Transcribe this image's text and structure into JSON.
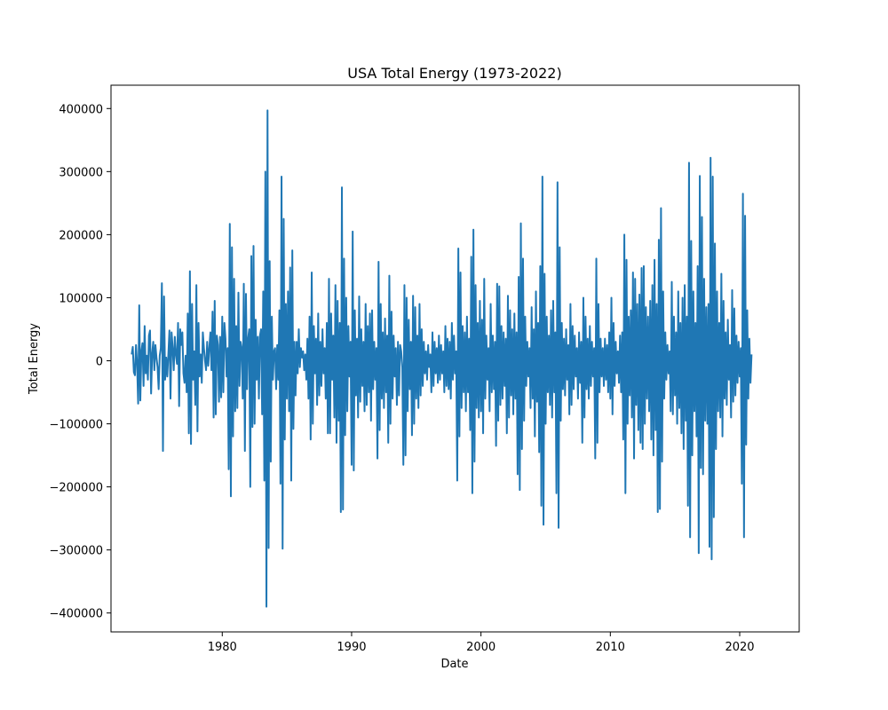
{
  "chart_data": {
    "type": "line",
    "title": "USA Total Energy (1973-2022)",
    "xlabel": "Date",
    "ylabel": "Total Energy",
    "xlim": [
      1971.4,
      2024.6
    ],
    "ylim": [
      -430000,
      437000
    ],
    "x_ticks": [
      1980,
      1990,
      2000,
      2010,
      2020
    ],
    "x_tick_labels": [
      "1980",
      "1990",
      "2000",
      "2010",
      "2020"
    ],
    "y_ticks": [
      -400000,
      -300000,
      -200000,
      -100000,
      0,
      100000,
      200000,
      300000,
      400000
    ],
    "y_tick_labels": [
      "−400000",
      "−300000",
      "−200000",
      "−100000",
      "0",
      "100000",
      "200000",
      "300000",
      "400000"
    ],
    "grid": false,
    "legend": "none",
    "series": [
      {
        "color": "#1f77b4",
        "x_start": 1973.0,
        "x_step_months": 1,
        "values": [
          10000,
          22000,
          -18000,
          -23000,
          25000,
          -5000,
          -68000,
          88000,
          -63000,
          15000,
          28000,
          -40000,
          55000,
          -20000,
          8000,
          -30000,
          40000,
          48000,
          -52000,
          12000,
          30000,
          -15000,
          25000,
          5000,
          -10000,
          -45000,
          8000,
          20000,
          123000,
          -143000,
          102000,
          -30000,
          5000,
          -25000,
          10000,
          48000,
          -60000,
          45000,
          20000,
          -15000,
          38000,
          10000,
          -5000,
          60000,
          -72000,
          50000,
          25000,
          45000,
          -20000,
          -35000,
          8000,
          -50000,
          75000,
          -115000,
          142000,
          -132000,
          90000,
          -30000,
          15000,
          -70000,
          120000,
          -112000,
          60000,
          -25000,
          10000,
          -35000,
          45000,
          20000,
          0,
          -15000,
          30000,
          -8000,
          20000,
          45000,
          -15000,
          78000,
          -90000,
          95000,
          -85000,
          40000,
          25000,
          -65000,
          38000,
          -58000,
          70000,
          -50000,
          60000,
          35000,
          -25000,
          20000,
          -172000,
          217000,
          -215000,
          180000,
          -120000,
          130000,
          -80000,
          55000,
          -75000,
          108000,
          -40000,
          30000,
          20000,
          -60000,
          122000,
          -143000,
          106000,
          -45000,
          35000,
          50000,
          -200000,
          166000,
          -105000,
          182000,
          -100000,
          65000,
          -30000,
          38000,
          -60000,
          40000,
          50000,
          -85000,
          110000,
          -190000,
          300000,
          -390000,
          397000,
          -297000,
          158000,
          -160000,
          70000,
          -30000,
          15000,
          20000,
          -45000,
          25000,
          -30000,
          80000,
          -195000,
          292000,
          -298000,
          225000,
          -125000,
          90000,
          -60000,
          110000,
          -80000,
          148000,
          -190000,
          175000,
          -108000,
          30000,
          -55000,
          30000,
          -20000,
          50000,
          -10000,
          20000,
          5000,
          15000,
          -15000,
          10000,
          -30000,
          35000,
          -60000,
          70000,
          -125000,
          140000,
          -100000,
          55000,
          -20000,
          35000,
          -70000,
          75000,
          -55000,
          30000,
          -40000,
          50000,
          -20000,
          20000,
          -60000,
          60000,
          -115000,
          130000,
          -115000,
          75000,
          -30000,
          40000,
          -90000,
          120000,
          -130000,
          95000,
          -95000,
          60000,
          -240000,
          275000,
          -236000,
          162000,
          -118000,
          100000,
          -80000,
          55000,
          -25000,
          30000,
          -165000,
          205000,
          -174000,
          80000,
          -55000,
          35000,
          -90000,
          102000,
          -65000,
          50000,
          -40000,
          30000,
          -80000,
          90000,
          -70000,
          55000,
          -50000,
          75000,
          -95000,
          80000,
          -45000,
          30000,
          -30000,
          20000,
          -155000,
          157000,
          -110000,
          90000,
          -60000,
          45000,
          -75000,
          67000,
          -50000,
          40000,
          -130000,
          135000,
          -100000,
          78000,
          -60000,
          40000,
          -25000,
          20000,
          -70000,
          30000,
          -55000,
          25000,
          15000,
          -10000,
          -165000,
          120000,
          -150000,
          100000,
          -80000,
          65000,
          -45000,
          30000,
          -118000,
          103000,
          -100000,
          85000,
          -60000,
          40000,
          -75000,
          90000,
          -55000,
          50000,
          -40000,
          30000,
          -20000,
          15000,
          -30000,
          25000,
          -10000,
          10000,
          -50000,
          45000,
          -40000,
          30000,
          -20000,
          20000,
          -35000,
          40000,
          -30000,
          25000,
          -20000,
          15000,
          -50000,
          55000,
          -40000,
          35000,
          -45000,
          30000,
          -60000,
          60000,
          -30000,
          40000,
          -20000,
          15000,
          -190000,
          178000,
          -120000,
          140000,
          -75000,
          55000,
          -50000,
          45000,
          -80000,
          70000,
          -50000,
          35000,
          -110000,
          165000,
          -210000,
          208000,
          -160000,
          120000,
          -75000,
          60000,
          -90000,
          95000,
          -80000,
          65000,
          -115000,
          130000,
          -60000,
          40000,
          -30000,
          20000,
          -80000,
          90000,
          -50000,
          40000,
          -45000,
          30000,
          -135000,
          122000,
          -95000,
          118000,
          -70000,
          55000,
          -60000,
          45000,
          -40000,
          35000,
          -115000,
          103000,
          -90000,
          80000,
          -55000,
          50000,
          -85000,
          75000,
          -60000,
          45000,
          -180000,
          133000,
          -205000,
          218000,
          -140000,
          162000,
          -95000,
          70000,
          -40000,
          30000,
          -25000,
          20000,
          -75000,
          85000,
          -60000,
          50000,
          -120000,
          110000,
          -65000,
          60000,
          -145000,
          150000,
          -230000,
          292000,
          -260000,
          138000,
          -100000,
          70000,
          -50000,
          40000,
          -70000,
          80000,
          -90000,
          95000,
          -50000,
          45000,
          -210000,
          283000,
          -265000,
          180000,
          -95000,
          60000,
          -45000,
          35000,
          -55000,
          50000,
          -30000,
          25000,
          -85000,
          90000,
          -70000,
          55000,
          -45000,
          40000,
          -25000,
          20000,
          -60000,
          45000,
          -35000,
          30000,
          -130000,
          100000,
          -90000,
          70000,
          -45000,
          35000,
          -60000,
          55000,
          -40000,
          30000,
          -25000,
          20000,
          -155000,
          162000,
          -130000,
          90000,
          -50000,
          35000,
          -25000,
          20000,
          -40000,
          35000,
          -30000,
          25000,
          -50000,
          45000,
          -60000,
          100000,
          -85000,
          60000,
          -40000,
          30000,
          -20000,
          15000,
          -35000,
          40000,
          -50000,
          45000,
          -125000,
          200000,
          -210000,
          160000,
          -100000,
          70000,
          -55000,
          80000,
          -90000,
          140000,
          -155000,
          130000,
          -70000,
          90000,
          -110000,
          105000,
          -130000,
          147000,
          -140000,
          150000,
          -100000,
          85000,
          -60000,
          70000,
          -80000,
          95000,
          -125000,
          120000,
          -150000,
          160000,
          -110000,
          90000,
          -240000,
          192000,
          -235000,
          242000,
          -160000,
          110000,
          -60000,
          45000,
          -30000,
          25000,
          -20000,
          15000,
          -80000,
          125000,
          -85000,
          70000,
          -55000,
          45000,
          -100000,
          110000,
          -75000,
          60000,
          -115000,
          100000,
          -140000,
          120000,
          -95000,
          70000,
          -230000,
          314000,
          -280000,
          190000,
          -150000,
          110000,
          -80000,
          60000,
          -120000,
          150000,
          -305000,
          293000,
          -170000,
          228000,
          -180000,
          130000,
          -95000,
          85000,
          -100000,
          90000,
          -295000,
          322000,
          -315000,
          292000,
          -248000,
          186000,
          -140000,
          110000,
          -80000,
          60000,
          -90000,
          138000,
          -120000,
          95000,
          -60000,
          45000,
          -70000,
          65000,
          -30000,
          25000,
          -90000,
          112000,
          -65000,
          83000,
          -55000,
          40000,
          -35000,
          30000,
          -25000,
          20000,
          -195000,
          265000,
          -280000,
          230000,
          -133000,
          80000,
          -60000,
          35000,
          -35000,
          10000
        ]
      }
    ]
  }
}
